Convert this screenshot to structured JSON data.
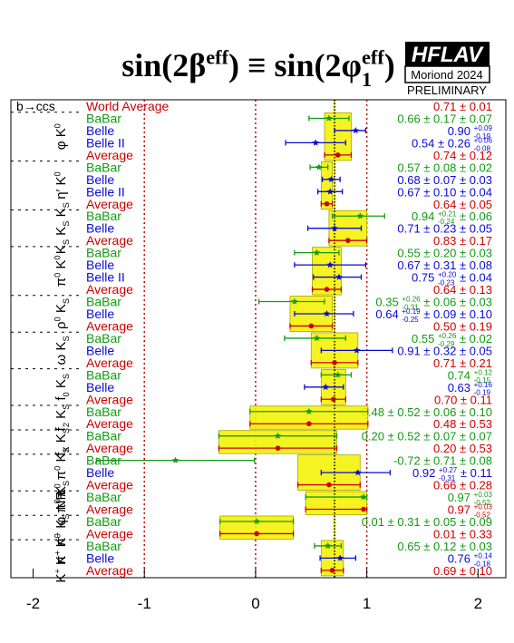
{
  "title": [
    {
      "t": "sin(2β"
    },
    {
      "t": "eff",
      "s": "sup"
    },
    {
      "t": ") ≡ sin(2φ"
    },
    {
      "sup": "eff",
      "sub": "1"
    },
    {
      "t": ")"
    }
  ],
  "logo": {
    "name": "HFLAV",
    "event": "Moriond 2024",
    "status": "PRELIMINARY"
  },
  "chart_data": {
    "type": "forest",
    "xlim": [
      -2.2,
      2.25
    ],
    "xticks": [
      -2,
      -1,
      0,
      1,
      2
    ],
    "grid_x": [
      -1,
      0,
      1
    ],
    "colors": {
      "BaBar": "#139a13",
      "Belle": "#0a0ad8",
      "Belle II": "#0a0ad8",
      "Average": "#cc0000",
      "World Average": "#cc0000"
    },
    "head": "b→ccs",
    "world_average": {
      "name": "World Average",
      "value": 0.71,
      "err": 0.01,
      "label": [
        {
          "t": "0.71 ± 0.01"
        }
      ]
    },
    "groups": [
      {
        "label": [
          {
            "t": "φ K"
          },
          {
            "t": "0",
            "s": "sup"
          }
        ],
        "rows": [
          {
            "name": "BaBar",
            "value": 0.66,
            "xerr": [
              0.18,
              0.18
            ],
            "label": [
              {
                "t": "0.66 ± 0.17 ± 0.07"
              }
            ]
          },
          {
            "name": "Belle",
            "value": 0.9,
            "xerr": [
              0.19,
              0.09
            ],
            "label": [
              {
                "t": "0.90 "
              },
              {
                "sup": "+0.09",
                "sub": "-0.19"
              }
            ]
          },
          {
            "name": "Belle II",
            "value": 0.54,
            "xerr": [
              0.27,
              0.27
            ],
            "label": [
              {
                "t": "0.54 ± 0.26 "
              },
              {
                "sup": "+0.06",
                "sub": "-0.08"
              }
            ]
          }
        ],
        "average": {
          "name": "Average",
          "value": 0.74,
          "xerr": [
            0.12,
            0.12
          ],
          "label": [
            {
              "t": "0.74 ± 0.12"
            }
          ]
        }
      },
      {
        "label": [
          {
            "t": "η′ K"
          },
          {
            "t": "0",
            "s": "sup"
          }
        ],
        "rows": [
          {
            "name": "BaBar",
            "value": 0.57,
            "xerr": [
              0.08,
              0.08
            ],
            "label": [
              {
                "t": "0.57 ± 0.08 ± 0.02"
              }
            ]
          },
          {
            "name": "Belle",
            "value": 0.68,
            "xerr": [
              0.08,
              0.08
            ],
            "label": [
              {
                "t": "0.68 ± 0.07 ± 0.03"
              }
            ]
          },
          {
            "name": "Belle II",
            "value": 0.67,
            "xerr": [
              0.11,
              0.11
            ],
            "label": [
              {
                "t": "0.67 ± 0.10 ± 0.04"
              }
            ]
          }
        ],
        "average": {
          "name": "Average",
          "value": 0.64,
          "xerr": [
            0.05,
            0.05
          ],
          "label": [
            {
              "t": "0.64 ± 0.05"
            }
          ]
        }
      },
      {
        "label": [
          {
            "t": "K"
          },
          {
            "t": "S",
            "s": "sub"
          },
          {
            "t": " K"
          },
          {
            "t": "S",
            "s": "sub"
          },
          {
            "t": " K"
          },
          {
            "t": "S",
            "s": "sub"
          }
        ],
        "rows": [
          {
            "name": "BaBar",
            "value": 0.94,
            "xerr": [
              0.25,
              0.22
            ],
            "label": [
              {
                "t": "0.94 "
              },
              {
                "sup": "+0.21",
                "sub": "-0.24"
              },
              {
                "t": " ± 0.06"
              }
            ]
          },
          {
            "name": "Belle",
            "value": 0.71,
            "xerr": [
              0.24,
              0.24
            ],
            "label": [
              {
                "t": "0.71 ± 0.23 ± 0.05"
              }
            ]
          }
        ],
        "average": {
          "name": "Average",
          "value": 0.83,
          "xerr": [
            0.17,
            0.17
          ],
          "label": [
            {
              "t": "0.83 ± 0.17"
            }
          ]
        }
      },
      {
        "label": [
          {
            "t": "π"
          },
          {
            "t": "0",
            "s": "sup"
          },
          {
            "t": " K"
          },
          {
            "t": "0",
            "s": "sup"
          }
        ],
        "rows": [
          {
            "name": "BaBar",
            "value": 0.55,
            "xerr": [
              0.2,
              0.2
            ],
            "label": [
              {
                "t": "0.55 ± 0.20 ± 0.03"
              }
            ]
          },
          {
            "name": "Belle",
            "value": 0.67,
            "xerr": [
              0.32,
              0.32
            ],
            "label": [
              {
                "t": "0.67 ± 0.31 ± 0.08"
              }
            ]
          },
          {
            "name": "Belle II",
            "value": 0.75,
            "xerr": [
              0.23,
              0.2
            ],
            "label": [
              {
                "t": "0.75 "
              },
              {
                "sup": "+0.20",
                "sub": "-0.23"
              },
              {
                "t": " ± 0.04"
              }
            ]
          }
        ],
        "average": {
          "name": "Average",
          "value": 0.64,
          "xerr": [
            0.13,
            0.13
          ],
          "label": [
            {
              "t": "0.64 ± 0.13"
            }
          ]
        }
      },
      {
        "label": [
          {
            "t": "ρ"
          },
          {
            "t": "0",
            "s": "sup"
          },
          {
            "t": " K"
          },
          {
            "t": "S",
            "s": "sub"
          }
        ],
        "rows": [
          {
            "name": "BaBar",
            "value": 0.35,
            "xerr": [
              0.32,
              0.27
            ],
            "label": [
              {
                "t": "0.35 "
              },
              {
                "sup": "+0.26",
                "sub": "-0.31"
              },
              {
                "t": " ± 0.06 ± 0.03"
              }
            ]
          },
          {
            "name": "Belle",
            "value": 0.64,
            "xerr": [
              0.29,
              0.24
            ],
            "label": [
              {
                "t": "0.64 "
              },
              {
                "sup": "+0.19",
                "sub": "-0.25"
              },
              {
                "t": " ± 0.09 ± 0.10"
              }
            ]
          }
        ],
        "average": {
          "name": "Average",
          "value": 0.5,
          "xerr": [
            0.19,
            0.19
          ],
          "label": [
            {
              "t": "0.50 ± 0.19"
            }
          ]
        }
      },
      {
        "label": [
          {
            "t": "ω K"
          },
          {
            "t": "S",
            "s": "sub"
          }
        ],
        "rows": [
          {
            "name": "BaBar",
            "value": 0.55,
            "xerr": [
              0.29,
              0.26
            ],
            "label": [
              {
                "t": "0.55 "
              },
              {
                "sup": "+0.26",
                "sub": "-0.29"
              },
              {
                "t": " ± 0.02"
              }
            ]
          },
          {
            "name": "Belle",
            "value": 0.91,
            "xerr": [
              0.32,
              0.32
            ],
            "label": [
              {
                "t": "0.91 ± 0.32 ± 0.05"
              }
            ]
          }
        ],
        "average": {
          "name": "Average",
          "value": 0.71,
          "xerr": [
            0.21,
            0.21
          ],
          "label": [
            {
              "t": "0.71 ± 0.21"
            }
          ]
        }
      },
      {
        "label": [
          {
            "t": "f"
          },
          {
            "t": "0",
            "s": "sub"
          },
          {
            "t": " K"
          },
          {
            "t": "S",
            "s": "sub"
          }
        ],
        "rows": [
          {
            "name": "BaBar",
            "value": 0.74,
            "xerr": [
              0.15,
              0.12
            ],
            "label": [
              {
                "t": "0.74 "
              },
              {
                "sup": "+0.12",
                "sub": "-0.15"
              }
            ]
          },
          {
            "name": "Belle",
            "value": 0.63,
            "xerr": [
              0.19,
              0.16
            ],
            "label": [
              {
                "t": "0.63 "
              },
              {
                "sup": "+0.16",
                "sub": "-0.19"
              }
            ]
          }
        ],
        "average": {
          "name": "Average",
          "value": 0.7,
          "xerr": [
            0.11,
            0.11
          ],
          "label": [
            {
              "t": "0.70 ± 0.11"
            }
          ]
        }
      },
      {
        "label": [
          {
            "t": "f"
          },
          {
            "t": "2",
            "s": "sub"
          },
          {
            "t": " K"
          },
          {
            "t": "S",
            "s": "sub"
          }
        ],
        "rows": [
          {
            "name": "BaBar",
            "value": 0.48,
            "xerr": [
              0.53,
              0.53
            ],
            "label": [
              {
                "t": "0.48 ± 0.52 ± 0.06 ± 0.10"
              }
            ]
          }
        ],
        "average": {
          "name": "Average",
          "value": 0.48,
          "xerr": [
            0.53,
            0.53
          ],
          "label": [
            {
              "t": "0.48 ± 0.53"
            }
          ]
        }
      },
      {
        "label": [
          {
            "t": "f"
          },
          {
            "t": "X",
            "s": "sub"
          },
          {
            "t": " K"
          },
          {
            "t": "S",
            "s": "sub"
          }
        ],
        "rows": [
          {
            "name": "BaBar",
            "value": 0.2,
            "xerr": [
              0.53,
              0.53
            ],
            "label": [
              {
                "t": "0.20 ± 0.52 ± 0.07 ± 0.07"
              }
            ]
          }
        ],
        "average": {
          "name": "Average",
          "value": 0.2,
          "xerr": [
            0.53,
            0.53
          ],
          "label": [
            {
              "t": "0.20 ± 0.53"
            }
          ]
        }
      },
      {
        "label": [
          {
            "t": "π"
          },
          {
            "t": "0",
            "s": "sup"
          },
          {
            "t": " π"
          },
          {
            "t": "0",
            "s": "sup"
          },
          {
            "t": " K"
          },
          {
            "t": "S",
            "s": "sub"
          }
        ],
        "rows": [
          {
            "name": "BaBar",
            "value": -0.72,
            "xerr": [
              0.71,
              0.71
            ],
            "label": [
              {
                "t": "-0.72 ± 0.71 ± 0.08"
              }
            ]
          },
          {
            "name": "Belle",
            "value": 0.92,
            "xerr": [
              0.33,
              0.29
            ],
            "label": [
              {
                "t": "0.92 "
              },
              {
                "sup": "+0.27",
                "sub": "-0.31"
              },
              {
                "t": " ± 0.11"
              }
            ]
          }
        ],
        "average": {
          "name": "Average",
          "value": 0.66,
          "xerr": [
            0.28,
            0.28
          ],
          "label": [
            {
              "t": "0.66 ± 0.28"
            }
          ]
        }
      },
      {
        "label": [
          {
            "t": "φ π"
          },
          {
            "t": "0",
            "s": "sup"
          },
          {
            "t": " K"
          },
          {
            "t": "S",
            "s": "sub"
          }
        ],
        "rows": [
          {
            "name": "BaBar",
            "value": 0.97,
            "xerr": [
              0.52,
              0.03
            ],
            "label": [
              {
                "t": "0.97 "
              },
              {
                "sup": "+0.03",
                "sub": "-0.52"
              }
            ]
          }
        ],
        "average": {
          "name": "Average",
          "value": 0.97,
          "xerr": [
            0.52,
            0.03
          ],
          "label": [
            {
              "t": "0.97 "
            },
            {
              "sup": "+0.03",
              "sub": "-0.52"
            }
          ]
        }
      },
      {
        "label": [
          {
            "t": "π"
          },
          {
            "t": "+",
            "s": "sup"
          },
          {
            "t": " π"
          },
          {
            "t": "−",
            "s": "sup"
          },
          {
            "t": " K"
          },
          {
            "t": "S",
            "s": "sub"
          },
          {
            "t": " NR"
          }
        ],
        "rows": [
          {
            "name": "BaBar",
            "value": 0.01,
            "xerr": [
              0.33,
              0.33
            ],
            "label": [
              {
                "t": "0.01 ± 0.31 ± 0.05 ± 0.09"
              }
            ]
          }
        ],
        "average": {
          "name": "Average",
          "value": 0.01,
          "xerr": [
            0.33,
            0.33
          ],
          "label": [
            {
              "t": "0.01 ± 0.33"
            }
          ]
        }
      },
      {
        "label": [
          {
            "t": "K"
          },
          {
            "t": "+",
            "s": "sup"
          },
          {
            "t": " K"
          },
          {
            "t": "−",
            "s": "sup"
          },
          {
            "t": " K"
          },
          {
            "t": "0",
            "s": "sup"
          }
        ],
        "rows": [
          {
            "name": "BaBar",
            "value": 0.65,
            "xerr": [
              0.12,
              0.12
            ],
            "label": [
              {
                "t": "0.65 ± 0.12 ± 0.03"
              }
            ]
          },
          {
            "name": "Belle",
            "value": 0.76,
            "xerr": [
              0.18,
              0.14
            ],
            "label": [
              {
                "t": "0.76 "
              },
              {
                "sup": "+0.14",
                "sub": "-0.18"
              }
            ]
          }
        ],
        "average": {
          "name": "Average",
          "value": 0.69,
          "xerr": [
            0.1,
            0.1
          ],
          "label": [
            {
              "t": "0.69 ± 0.10"
            }
          ]
        }
      }
    ]
  }
}
